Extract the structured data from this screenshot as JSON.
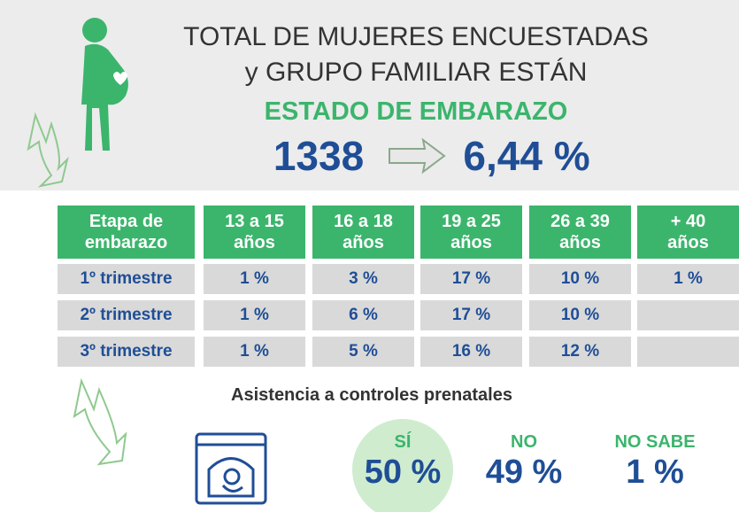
{
  "header": {
    "line1": "TOTAL DE MUJERES ENCUESTADAS",
    "line2": "y GRUPO FAMILIAR  ESTÁN",
    "line3": "ESTADO DE EMBARAZO",
    "count": "1338",
    "percent": "6,44 %"
  },
  "table": {
    "columns": [
      "Etapa de\nembarazo",
      "13 a 15\naños",
      "16 a 18\naños",
      "19 a 25\naños",
      "26 a 39\naños",
      "+ 40\naños"
    ],
    "rows": [
      [
        "1º trimestre",
        "1 %",
        "3 %",
        "17 %",
        "10 %",
        "1 %"
      ],
      [
        "2º trimestre",
        "1 %",
        "6 %",
        "17 %",
        "10 %"
      ],
      [
        "3º trimestre",
        "1 %",
        "5 %",
        "16 %",
        "12 %"
      ]
    ]
  },
  "prenatal": {
    "title": "Asistencia a controles prenatales",
    "options": [
      {
        "label": "SÍ",
        "value": "50 %"
      },
      {
        "label": "NO",
        "value": "49 %"
      },
      {
        "label": "NO SABE",
        "value": "1 %"
      }
    ]
  }
}
